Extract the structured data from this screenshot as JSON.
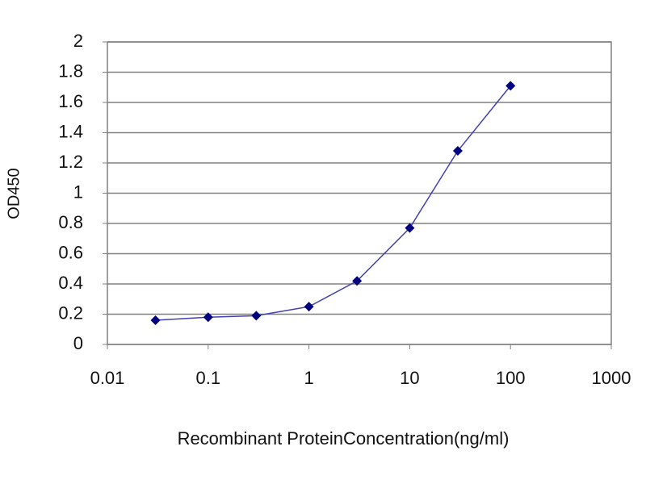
{
  "chart_data": {
    "type": "line",
    "xlabel": "Recombinant ProteinConcentration(ng/ml)",
    "ylabel": "OD450",
    "x": [
      0.03,
      0.1,
      0.3,
      1,
      3,
      10,
      30,
      100
    ],
    "series": [
      {
        "color": "#000080",
        "values": [
          0.16,
          0.18,
          0.19,
          0.25,
          0.42,
          0.77,
          1.28,
          1.71
        ]
      }
    ],
    "xscale": "log",
    "xlim": [
      0.01,
      1000
    ],
    "xticks": [
      0.01,
      0.1,
      1,
      10,
      100,
      1000
    ],
    "ylim": [
      0,
      2
    ],
    "yticks": [
      0,
      0.2,
      0.4,
      0.6,
      0.8,
      1,
      1.2,
      1.4,
      1.6,
      1.8,
      2
    ],
    "grid": true
  }
}
